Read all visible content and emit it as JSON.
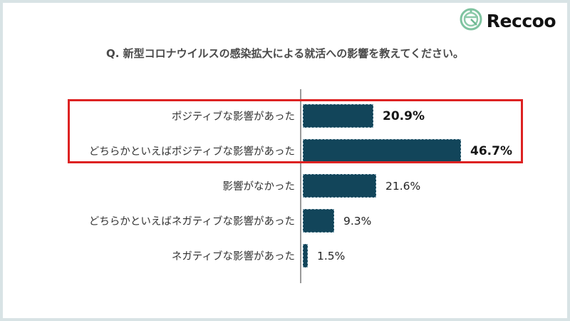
{
  "logo": {
    "text": "Reccoo",
    "icon": "reccoo-clock-icon",
    "icon_color": "#7fc3a0",
    "text_color": "#121212"
  },
  "title": "Q. 新型コロナウイルスの感染拡大による就活への影響を教えてください。",
  "chart_data": {
    "type": "bar",
    "orientation": "horizontal",
    "title": "Q. 新型コロナウイルスの感染拡大による就活への影響を教えてください。",
    "categories": [
      "ポジティブな影響があった",
      "どちらかといえばポジティブな影響があった",
      "影響がなかった",
      "どちらかといえばネガティブな影響があった",
      "ネガティブな影響があった"
    ],
    "values": [
      20.9,
      46.7,
      21.6,
      9.3,
      1.5
    ],
    "value_labels": [
      "20.9%",
      "46.7%",
      "21.6%",
      "9.3%",
      "1.5%"
    ],
    "emphasized": [
      true,
      true,
      false,
      false,
      false
    ],
    "bar_color": "#12455a",
    "xlabel": "",
    "ylabel": "",
    "xlim": [
      0,
      50
    ],
    "grid": false,
    "legend": false,
    "highlight": {
      "rows": [
        0,
        1
      ],
      "border_color": "#dd2222",
      "description": "red rectangle around the two positive-response rows"
    }
  }
}
